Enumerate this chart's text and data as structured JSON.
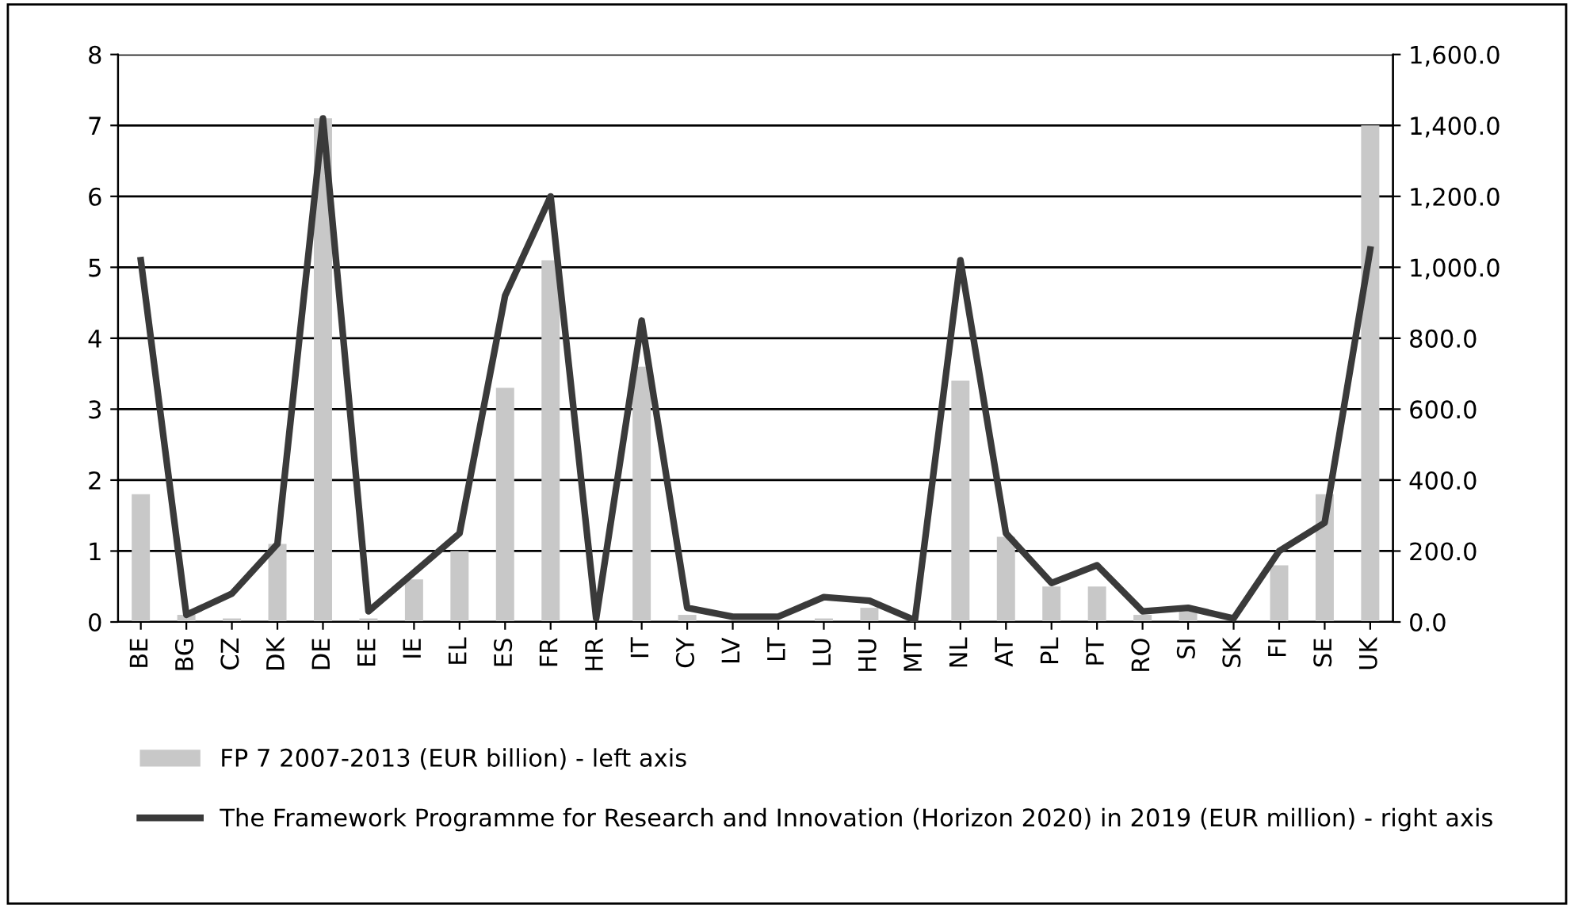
{
  "chart_data": {
    "type": "bar",
    "categories": [
      "BE",
      "BG",
      "CZ",
      "DK",
      "DE",
      "EE",
      "IE",
      "EL",
      "ES",
      "FR",
      "HR",
      "IT",
      "CY",
      "LV",
      "LT",
      "LU",
      "HU",
      "MT",
      "NL",
      "AT",
      "PL",
      "PT",
      "RO",
      "SI",
      "SK",
      "FI",
      "SE",
      "UK"
    ],
    "series": [
      {
        "name": "FP 7 2007-2013 (EUR billion) - left axis",
        "color": "#c8c8c8",
        "values": [
          1.8,
          0.1,
          0.05,
          1.1,
          7.1,
          0.05,
          0.6,
          1.0,
          3.3,
          5.1,
          null,
          3.6,
          0.1,
          null,
          null,
          0.05,
          0.2,
          null,
          3.4,
          1.2,
          0.5,
          0.5,
          0.1,
          0.2,
          null,
          0.8,
          1.8,
          7.0
        ]
      },
      {
        "name": "The Framework Programme for Research and Innovation (Horizon 2020) in 2019 (EUR million) - right axis",
        "type": "line",
        "axis": "y2",
        "color": "#3a3a3a",
        "values": [
          1020,
          20,
          80,
          220,
          1420,
          30,
          140,
          250,
          920,
          1200,
          10,
          850,
          40,
          15,
          15,
          70,
          60,
          5,
          1020,
          250,
          110,
          160,
          30,
          40,
          10,
          200,
          280,
          1050
        ]
      }
    ],
    "ylim": [
      0,
      8
    ],
    "yticks": [
      0,
      1,
      2,
      3,
      4,
      5,
      6,
      7,
      8
    ],
    "y2lim": [
      0,
      1600
    ],
    "y2ticks": [
      {
        "value": 0,
        "label": "0.0"
      },
      {
        "value": 200,
        "label": "200.0"
      },
      {
        "value": 400,
        "label": "400.0"
      },
      {
        "value": 600,
        "label": "600.0"
      },
      {
        "value": 800,
        "label": "800.0"
      },
      {
        "value": 1000,
        "label": "1,000.0"
      },
      {
        "value": 1200,
        "label": "1,200.0"
      },
      {
        "value": 1400,
        "label": "1,400.0"
      },
      {
        "value": 1600,
        "label": "1,600.0"
      }
    ],
    "grid": "y",
    "legend": "bottom",
    "marker": "none",
    "line_style": "solid"
  }
}
